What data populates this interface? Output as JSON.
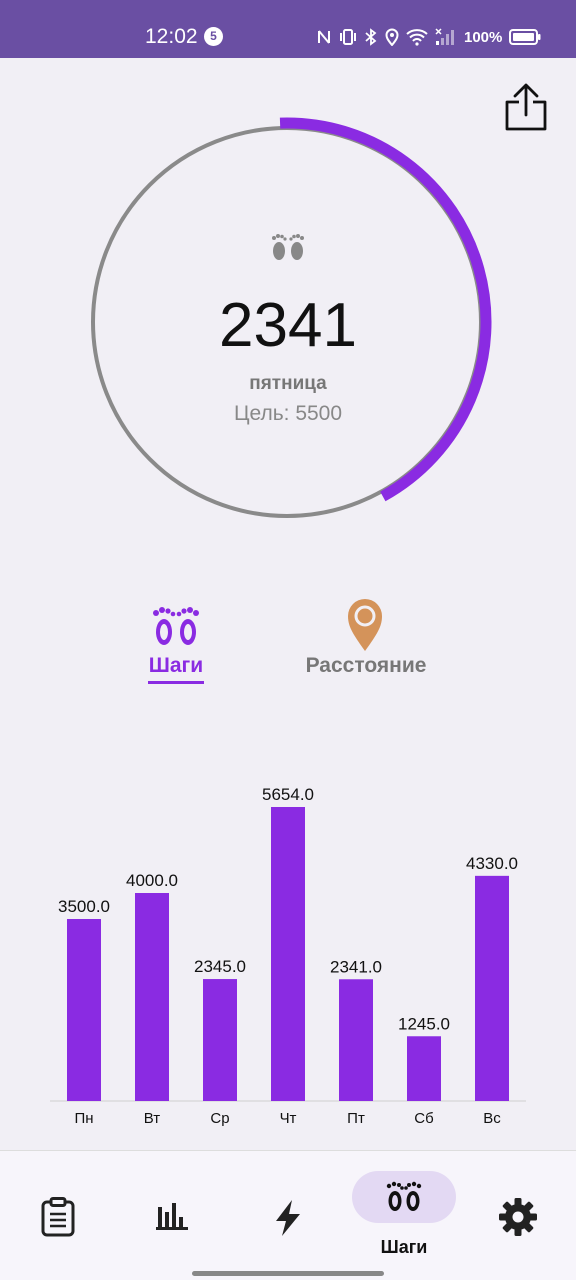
{
  "status_bar": {
    "time": "12:02",
    "notification_count": "5",
    "battery_percent": "100%",
    "icons": [
      "nfc-icon",
      "vibrate-icon",
      "bluetooth-icon",
      "location-icon",
      "wifi-icon",
      "cellular-icon",
      "battery-icon"
    ]
  },
  "toolbar": {
    "share_icon": "share-icon"
  },
  "progress": {
    "steps": "2341",
    "day": "пятница",
    "goal_label": "Цель: 5500",
    "goal": 5500,
    "fraction": 0.4256,
    "ring_color": "#8a2be2",
    "track_color": "#8a8a8a"
  },
  "modes": {
    "steps_label": "Шаги",
    "distance_label": "Расстояние",
    "active": "steps",
    "active_color": "#8a2be2",
    "distance_icon_color": "#d4935a"
  },
  "chart_data": {
    "type": "bar",
    "categories": [
      "Пн",
      "Вт",
      "Ср",
      "Чт",
      "Пт",
      "Сб",
      "Вс"
    ],
    "values": [
      3500.0,
      4000.0,
      2345.0,
      5654.0,
      2341.0,
      1245.0,
      4330.0
    ],
    "value_labels": [
      "3500.0",
      "4000.0",
      "2345.0",
      "5654.0",
      "2341.0",
      "1245.0",
      "4330.0"
    ],
    "bar_color": "#8a2be2",
    "ylim": [
      0,
      5654.0
    ],
    "grid": false,
    "title": "",
    "xlabel": "",
    "ylabel": ""
  },
  "bottom_nav": {
    "items": [
      {
        "icon": "clipboard-icon",
        "active": false
      },
      {
        "icon": "bar-chart-icon",
        "active": false
      },
      {
        "icon": "lightning-icon",
        "active": false
      },
      {
        "icon": "footprints-icon",
        "active": true,
        "label": "Шаги"
      },
      {
        "icon": "gear-icon",
        "active": false
      }
    ]
  }
}
